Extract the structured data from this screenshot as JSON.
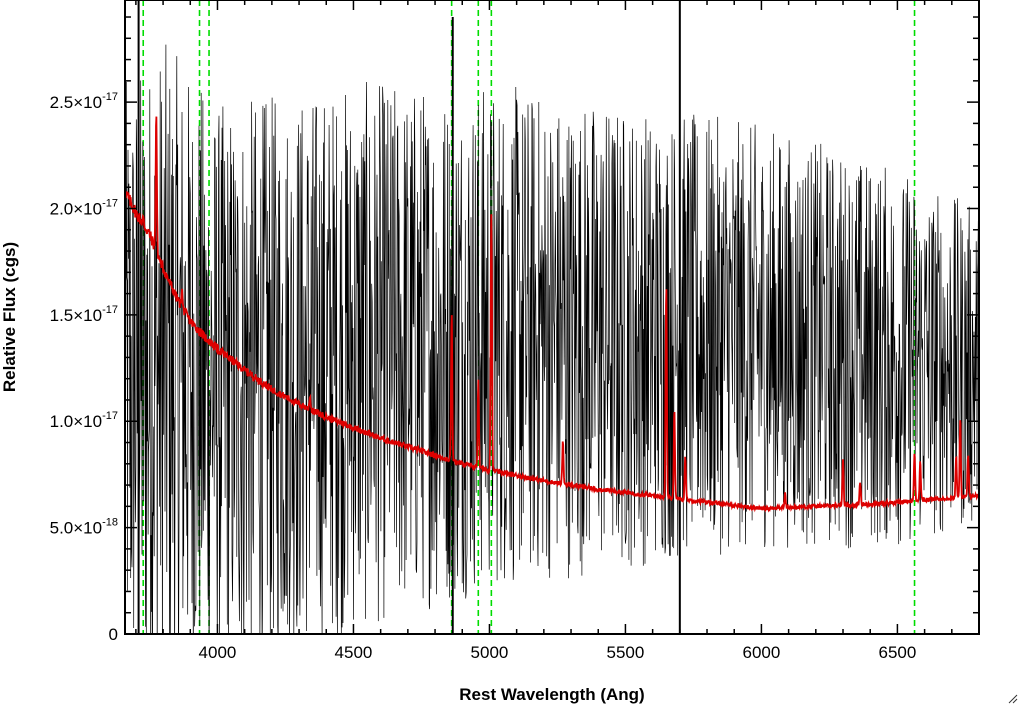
{
  "chart_data": {
    "type": "line",
    "title": "",
    "xlabel": "Rest Wavelength (Ang)",
    "ylabel": "Relative Flux (cgs)",
    "xlim": [
      3660,
      6800
    ],
    "ylim": [
      0,
      2.98e-17
    ],
    "x_ticks": [
      {
        "value": 4000,
        "label": "4000"
      },
      {
        "value": 4500,
        "label": "4500"
      },
      {
        "value": 5000,
        "label": "5000"
      },
      {
        "value": 5500,
        "label": "5500"
      },
      {
        "value": 6000,
        "label": "6000"
      },
      {
        "value": 6500,
        "label": "6500"
      }
    ],
    "y_ticks": [
      {
        "value": 0,
        "mantissa": "0",
        "exponent": ""
      },
      {
        "value": 5e-18,
        "mantissa": "5.0×10",
        "exponent": "-18"
      },
      {
        "value": 1e-17,
        "mantissa": "1.0×10",
        "exponent": "-17"
      },
      {
        "value": 1.5e-17,
        "mantissa": "1.5×10",
        "exponent": "-17"
      },
      {
        "value": 2e-17,
        "mantissa": "2.0×10",
        "exponent": "-17"
      },
      {
        "value": 2.5e-17,
        "mantissa": "2.5×10",
        "exponent": "-17"
      }
    ],
    "reference_lines": {
      "color": "#00dd00",
      "style": "dashed",
      "x": [
        3727,
        3934,
        3969,
        4861,
        4959,
        5007,
        6563
      ]
    },
    "series": [
      {
        "color": "#000000",
        "style": "noisy spectrum",
        "envelope": [
          [
            3660,
            2.6e-17,
            -3e-18
          ],
          [
            3800,
            2.8e-17,
            -3e-18
          ],
          [
            4000,
            2.5e-17,
            -2e-18
          ],
          [
            4500,
            2.6e-17,
            0.0
          ],
          [
            5000,
            2.6e-17,
            2e-18
          ],
          [
            5500,
            2.5e-17,
            3e-18
          ],
          [
            6000,
            2.4e-17,
            4e-18
          ],
          [
            6500,
            2.2e-17,
            4e-18
          ],
          [
            6800,
            2e-17,
            5e-18
          ]
        ],
        "spikes": [
          [
            3710,
            3e-17
          ],
          [
            5640,
            -3e-18
          ],
          [
            5700,
            3e-17
          ],
          [
            6490,
            -3e-18
          ],
          [
            4865,
            2.9e-17
          ]
        ]
      },
      {
        "color": "#dd0000",
        "style": "model continuum",
        "continuum": [
          [
            3660,
            2.08e-17
          ],
          [
            3700,
            1.98e-17
          ],
          [
            3750,
            1.88e-17
          ],
          [
            3800,
            1.72e-17
          ],
          [
            3850,
            1.58e-17
          ],
          [
            3900,
            1.47e-17
          ],
          [
            3950,
            1.4e-17
          ],
          [
            4000,
            1.34e-17
          ],
          [
            4100,
            1.24e-17
          ],
          [
            4200,
            1.15e-17
          ],
          [
            4300,
            1.08e-17
          ],
          [
            4400,
            1.02e-17
          ],
          [
            4500,
            9.7e-18
          ],
          [
            4600,
            9.2e-18
          ],
          [
            4700,
            8.8e-18
          ],
          [
            4800,
            8.4e-18
          ],
          [
            4900,
            8e-18
          ],
          [
            5000,
            7.7e-18
          ],
          [
            5200,
            7.2e-18
          ],
          [
            5400,
            6.8e-18
          ],
          [
            5600,
            6.5e-18
          ],
          [
            5800,
            6.2e-18
          ],
          [
            6000,
            5.9e-18
          ],
          [
            6200,
            6e-18
          ],
          [
            6400,
            6.1e-18
          ],
          [
            6600,
            6.3e-18
          ],
          [
            6800,
            6.5e-18
          ]
        ],
        "emission_lines": [
          [
            3727,
            1.95e-17
          ],
          [
            3775,
            2.45e-17
          ],
          [
            3869,
            1.62e-17
          ],
          [
            4340,
            1.12e-17
          ],
          [
            4861,
            1.52e-17
          ],
          [
            4959,
            1.2e-17
          ],
          [
            5007,
            1.98e-17
          ],
          [
            5270,
            9e-18
          ],
          [
            5650,
            1.65e-17
          ],
          [
            5680,
            1.05e-17
          ],
          [
            5720,
            8.4e-18
          ],
          [
            6087,
            6.6e-18
          ],
          [
            6300,
            8.3e-18
          ],
          [
            6363,
            7.2e-18
          ],
          [
            6563,
            8.6e-18
          ],
          [
            6584,
            8.2e-18
          ],
          [
            6716,
            8.4e-18
          ],
          [
            6731,
            1.02e-17
          ],
          [
            6760,
            8.5e-18
          ]
        ]
      }
    ]
  }
}
